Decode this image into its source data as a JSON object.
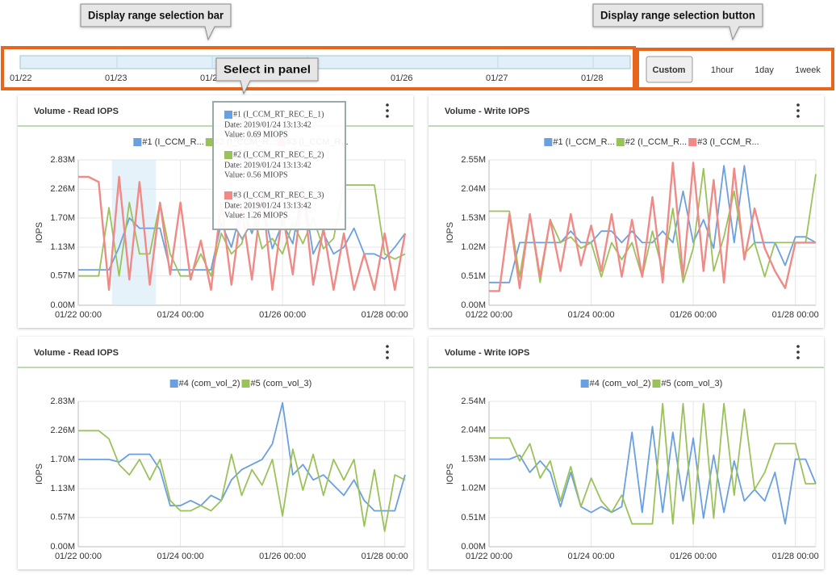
{
  "callouts": {
    "range_bar": "Display range selection bar",
    "range_button": "Display range selection button",
    "select_panel": "Select in panel"
  },
  "range_bar": {
    "dates": [
      "01/22",
      "01/23",
      "01/24",
      "01/26",
      "01/27",
      "01/28"
    ]
  },
  "range_buttons": [
    "Custom",
    "1hour",
    "1day",
    "1week"
  ],
  "tooltip": {
    "entries": [
      {
        "name": "#1 (I_CCM_RT_REC_E_1)",
        "date": "Date: 2019/01/24 13:13:42",
        "value": "Value: 0.69 MIOPS",
        "color": "#6a9fe0"
      },
      {
        "name": "#2 (I_CCM_RT_REC_E_2)",
        "date": "Date: 2019/01/24 13:13:42",
        "value": "Value: 0.56 MIOPS",
        "color": "#9bc25a"
      },
      {
        "name": "#3 (I_CCM_RT_REC_E_3)",
        "date": "Date: 2019/01/24 13:13:42",
        "value": "Value: 1.26 MIOPS",
        "color": "#f08a86"
      }
    ]
  },
  "panels": [
    {
      "title": "Volume - Read IOPS",
      "chart": {
        "type": "line",
        "ylabel": "IOPS",
        "xlim": [
          0,
          32
        ],
        "xticks": [
          {
            "value": 0,
            "label": "01/22 00:00"
          },
          {
            "value": 10,
            "label": "01/24 00:00"
          },
          {
            "value": 20,
            "label": "01/26 00:00"
          },
          {
            "value": 30,
            "label": "01/28 00:00"
          }
        ],
        "ylim": [
          0,
          2.83
        ],
        "yticks": [
          {
            "value": 0,
            "label": "0.00M"
          },
          {
            "value": 0.57,
            "label": "0.57M"
          },
          {
            "value": 1.13,
            "label": "1.13M"
          },
          {
            "value": 1.7,
            "label": "1.70M"
          },
          {
            "value": 2.26,
            "label": "2.26M"
          },
          {
            "value": 2.83,
            "label": "2.83M"
          }
        ],
        "series": [
          {
            "name": "#1 (I_CCM_R...",
            "color": "#6a9fe0",
            "values": [
              0.69,
              0.69,
              0.69,
              0.69,
              1.13,
              1.7,
              1.5,
              1.5,
              1.5,
              0.69,
              0.69,
              0.69,
              0.69,
              0.69,
              1.6,
              1.13,
              1.9,
              1.4,
              2.0,
              1.1,
              1.6,
              1.2,
              2.3,
              1.0,
              1.4,
              1.0,
              1.13,
              1.5,
              1.0,
              1.0,
              0.9,
              1.13,
              1.4
            ]
          },
          {
            "name": "#2 (I_CCM_R...",
            "color": "#9bc25a",
            "values": [
              0.57,
              0.57,
              0.57,
              1.9,
              0.57,
              2.0,
              1.0,
              1.0,
              2.0,
              1.0,
              0.57,
              0.57,
              1.0,
              0.57,
              1.4,
              1.0,
              1.2,
              1.9,
              1.1,
              1.3,
              1.0,
              1.6,
              1.2,
              1.7,
              1.1,
              1.3,
              2.34,
              2.34,
              2.34,
              2.34,
              1.0,
              0.9,
              1.0
            ]
          },
          {
            "name": "#3 (I_CCM_R...",
            "color": "#f08a86",
            "values": [
              2.5,
              2.5,
              2.4,
              0.3,
              2.5,
              0.5,
              2.4,
              0.4,
              2.0,
              0.6,
              2.0,
              0.5,
              1.26,
              0.3,
              2.0,
              0.4,
              1.9,
              0.5,
              2.2,
              0.3,
              1.8,
              0.6,
              2.3,
              0.4,
              1.5,
              0.3,
              1.4,
              0.3,
              1.0,
              0.3,
              1.4,
              0.3,
              1.4
            ]
          }
        ]
      }
    },
    {
      "title": "Volume - Write IOPS",
      "chart": {
        "type": "line",
        "ylabel": "IOPS",
        "xlim": [
          0,
          32
        ],
        "xticks": [
          {
            "value": 0,
            "label": "01/22 00:00"
          },
          {
            "value": 10,
            "label": "01/24 00:00"
          },
          {
            "value": 20,
            "label": "01/26 00:00"
          },
          {
            "value": 30,
            "label": "01/28 00:00"
          }
        ],
        "ylim": [
          0,
          2.55
        ],
        "yticks": [
          {
            "value": 0,
            "label": "0.00M"
          },
          {
            "value": 0.51,
            "label": "0.51M"
          },
          {
            "value": 1.02,
            "label": "1.02M"
          },
          {
            "value": 1.53,
            "label": "1.53M"
          },
          {
            "value": 2.04,
            "label": "2.04M"
          },
          {
            "value": 2.55,
            "label": "2.55M"
          }
        ],
        "series": [
          {
            "name": "#1 (I_CCM_R...",
            "color": "#6a9fe0",
            "values": [
              0.4,
              0.4,
              0.4,
              1.1,
              1.1,
              1.1,
              1.1,
              1.1,
              1.3,
              1.1,
              1.1,
              1.3,
              1.3,
              1.1,
              1.3,
              1.1,
              1.1,
              1.3,
              1.1,
              2.0,
              1.1,
              1.5,
              1.0,
              2.45,
              1.1,
              2.45,
              1.1,
              1.1,
              1.1,
              0.7,
              1.2,
              1.2,
              1.1
            ]
          },
          {
            "name": "#2 (I_CCM_R...",
            "color": "#9bc25a",
            "values": [
              1.65,
              1.65,
              1.65,
              0.5,
              1.6,
              0.4,
              1.5,
              1.1,
              1.2,
              1.0,
              1.1,
              0.5,
              1.1,
              0.8,
              1.1,
              0.5,
              1.3,
              0.6,
              1.7,
              0.4,
              1.0,
              2.4,
              0.6,
              1.2,
              2.0,
              0.9,
              1.1,
              0.5,
              1.1,
              1.1,
              1.1,
              1.1,
              2.3
            ]
          },
          {
            "name": "#3 (I_CCM_R...",
            "color": "#f08a86",
            "values": [
              0.25,
              0.25,
              1.6,
              0.3,
              1.6,
              0.5,
              1.5,
              0.6,
              1.6,
              0.7,
              1.4,
              0.6,
              1.6,
              0.5,
              1.5,
              0.5,
              1.9,
              0.4,
              2.5,
              0.5,
              2.5,
              0.6,
              2.2,
              0.4,
              2.4,
              0.8,
              1.7,
              1.0,
              0.6,
              0.3,
              1.1,
              1.1,
              1.1
            ]
          }
        ]
      }
    },
    {
      "title": "Volume - Read IOPS",
      "chart": {
        "type": "line",
        "ylabel": "IOPS",
        "xlim": [
          0,
          32
        ],
        "xticks": [
          {
            "value": 0,
            "label": "01/22 00:00"
          },
          {
            "value": 10,
            "label": "01/24 00:00"
          },
          {
            "value": 20,
            "label": "01/26 00:00"
          },
          {
            "value": 30,
            "label": "01/28 00:00"
          }
        ],
        "ylim": [
          0,
          2.83
        ],
        "yticks": [
          {
            "value": 0,
            "label": "0.00M"
          },
          {
            "value": 0.57,
            "label": "0.57M"
          },
          {
            "value": 1.13,
            "label": "1.13M"
          },
          {
            "value": 1.7,
            "label": "1.70M"
          },
          {
            "value": 2.26,
            "label": "2.26M"
          },
          {
            "value": 2.83,
            "label": "2.83M"
          }
        ],
        "series": [
          {
            "name": "#4 (com_vol_2)",
            "color": "#6a9fe0",
            "values": [
              1.7,
              1.7,
              1.7,
              1.7,
              1.65,
              1.8,
              1.8,
              1.8,
              1.5,
              0.8,
              0.8,
              0.9,
              0.8,
              1.0,
              0.9,
              1.3,
              1.5,
              1.6,
              1.7,
              2.0,
              2.8,
              1.4,
              1.6,
              1.3,
              1.4,
              1.2,
              1.0,
              1.3,
              0.9,
              0.7,
              0.7,
              0.7,
              1.4
            ]
          },
          {
            "name": "#5 (com_vol_3)",
            "color": "#9bc25a",
            "values": [
              2.26,
              2.26,
              2.26,
              2.1,
              1.6,
              1.4,
              1.7,
              1.3,
              1.7,
              0.9,
              0.7,
              0.7,
              0.8,
              0.7,
              0.9,
              1.8,
              1.0,
              1.5,
              1.2,
              1.7,
              0.6,
              1.9,
              1.1,
              1.8,
              1.0,
              1.7,
              1.3,
              1.7,
              0.4,
              1.5,
              0.3,
              1.4,
              1.3
            ]
          }
        ]
      }
    },
    {
      "title": "Volume - Write IOPS",
      "chart": {
        "type": "line",
        "ylabel": "IOPS",
        "xlim": [
          0,
          32
        ],
        "xticks": [
          {
            "value": 0,
            "label": "01/22 00:00"
          },
          {
            "value": 10,
            "label": "01/24 00:00"
          },
          {
            "value": 20,
            "label": "01/26 00:00"
          },
          {
            "value": 30,
            "label": "01/28 00:00"
          }
        ],
        "ylim": [
          0,
          2.54
        ],
        "yticks": [
          {
            "value": 0,
            "label": "0.00M"
          },
          {
            "value": 0.51,
            "label": "0.51M"
          },
          {
            "value": 1.02,
            "label": "1.02M"
          },
          {
            "value": 1.53,
            "label": "1.53M"
          },
          {
            "value": 2.04,
            "label": "2.04M"
          },
          {
            "value": 2.54,
            "label": "2.54M"
          }
        ],
        "series": [
          {
            "name": "#4 (com_vol_2)",
            "color": "#6a9fe0",
            "values": [
              1.53,
              1.53,
              1.53,
              1.6,
              1.3,
              1.5,
              1.3,
              0.7,
              1.3,
              0.7,
              0.6,
              0.7,
              0.6,
              0.7,
              2.0,
              0.6,
              2.1,
              0.6,
              2.0,
              0.8,
              1.9,
              0.5,
              1.6,
              0.6,
              1.5,
              0.8,
              1.0,
              0.8,
              1.3,
              0.4,
              1.53,
              1.53,
              1.1
            ]
          },
          {
            "name": "#5 (com_vol_3)",
            "color": "#9bc25a",
            "values": [
              1.9,
              1.9,
              1.9,
              1.5,
              1.8,
              1.2,
              1.5,
              0.8,
              1.4,
              0.7,
              1.2,
              0.8,
              0.6,
              0.9,
              0.4,
              0.4,
              0.4,
              2.5,
              0.4,
              2.5,
              0.4,
              2.5,
              0.5,
              2.5,
              0.9,
              2.4,
              1.0,
              1.3,
              1.8,
              1.8,
              1.8,
              1.1,
              1.1
            ]
          }
        ]
      }
    }
  ]
}
